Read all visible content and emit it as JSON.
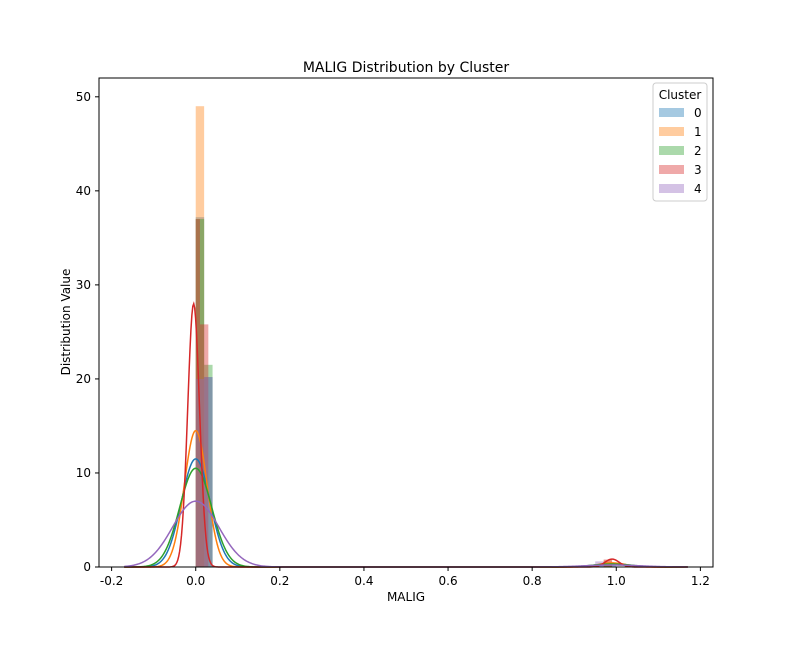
{
  "chart_data": {
    "type": "histogram-kde",
    "title": "MALIG Distribution by Cluster",
    "xlabel": "MALIG",
    "ylabel": "Distribution Value",
    "xlim": [
      -0.23,
      1.23
    ],
    "ylim": [
      0,
      52
    ],
    "xticks": [
      -0.2,
      0.0,
      0.2,
      0.4,
      0.6,
      0.8,
      1.0,
      1.2
    ],
    "yticks": [
      0,
      10,
      20,
      30,
      40,
      50
    ],
    "legend": {
      "title": "Cluster",
      "position": "top-right"
    },
    "series": [
      {
        "name": "0",
        "color": "#1f77b4",
        "bars": [
          {
            "x0": 0.0,
            "x1": 0.02,
            "height": 37.2
          },
          {
            "x0": 0.02,
            "x1": 0.04,
            "height": 20.2
          },
          {
            "x0": 0.96,
            "x1": 0.98,
            "height": 0.4
          },
          {
            "x0": 0.98,
            "x1": 1.0,
            "height": 0.3
          }
        ],
        "kde": {
          "peak_x": 0.0,
          "peak_y": 11.5,
          "bandwidth": 0.034
        }
      },
      {
        "name": "1",
        "color": "#ff7f0e",
        "bars": [
          {
            "x0": 0.0,
            "x1": 0.02,
            "height": 49.0
          },
          {
            "x0": 0.97,
            "x1": 0.99,
            "height": 0.7
          }
        ],
        "kde": {
          "peak_x": 0.0,
          "peak_y": 14.5,
          "bandwidth": 0.027
        }
      },
      {
        "name": "2",
        "color": "#2ca02c",
        "bars": [
          {
            "x0": 0.0,
            "x1": 0.02,
            "height": 37.0
          },
          {
            "x0": 0.02,
            "x1": 0.04,
            "height": 21.5
          },
          {
            "x0": 0.97,
            "x1": 0.99,
            "height": 0.5
          }
        ],
        "kde": {
          "peak_x": 0.0,
          "peak_y": 10.5,
          "bandwidth": 0.038
        }
      },
      {
        "name": "3",
        "color": "#d62728",
        "bars": [
          {
            "x0": 0.0,
            "x1": 0.01,
            "height": 37.0
          },
          {
            "x0": 0.01,
            "x1": 0.03,
            "height": 25.8
          },
          {
            "x0": 0.97,
            "x1": 0.99,
            "height": 0.8
          }
        ],
        "kde": {
          "peak_x": -0.005,
          "peak_y": 28.0,
          "bandwidth": 0.014
        }
      },
      {
        "name": "4",
        "color": "#9467bd",
        "bars": [
          {
            "x0": 0.0,
            "x1": 0.02,
            "height": 20.0
          },
          {
            "x0": 0.02,
            "x1": 0.04,
            "height": 20.2
          },
          {
            "x0": 0.95,
            "x1": 0.97,
            "height": 0.6
          }
        ],
        "kde": {
          "peak_x": 0.0,
          "peak_y": 7.0,
          "bandwidth": 0.055
        }
      }
    ]
  }
}
